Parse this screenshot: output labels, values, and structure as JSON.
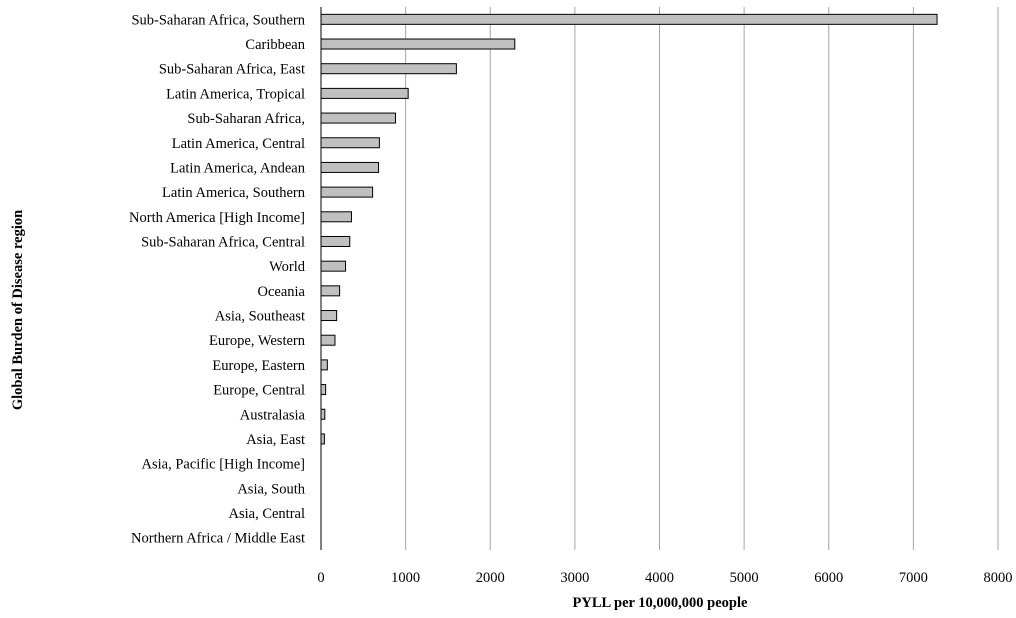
{
  "chart_data": {
    "type": "bar",
    "orientation": "horizontal",
    "categories": [
      "Sub-Saharan Africa, Southern",
      "Caribbean",
      "Sub-Saharan Africa, East",
      "Latin America, Tropical",
      "Sub-Saharan Africa,",
      "Latin America, Central",
      "Latin America, Andean",
      "Latin America, Southern",
      "North America [High Income]",
      "Sub-Saharan Africa, Central",
      "World",
      "Oceania",
      "Asia, Southeast",
      "Europe, Western",
      "Europe, Eastern",
      "Europe, Central",
      "Australasia",
      "Asia, East",
      "Asia, Pacific [High Income]",
      "Asia, South",
      "Asia, Central",
      "Northern Africa / Middle East"
    ],
    "values": [
      7280,
      2290,
      1600,
      1030,
      880,
      690,
      680,
      610,
      360,
      340,
      290,
      220,
      185,
      165,
      75,
      55,
      45,
      40,
      5,
      5,
      4,
      3
    ],
    "xlabel": "PYLL per 10,000,000 people",
    "ylabel": "Global Burden of Disease region",
    "xlim": [
      0,
      8000
    ],
    "xticks": [
      "0",
      "1000",
      "2000",
      "3000",
      "4000",
      "5000",
      "6000",
      "7000",
      "8000"
    ],
    "grid": true,
    "bar_color": "#c0c0c0"
  }
}
